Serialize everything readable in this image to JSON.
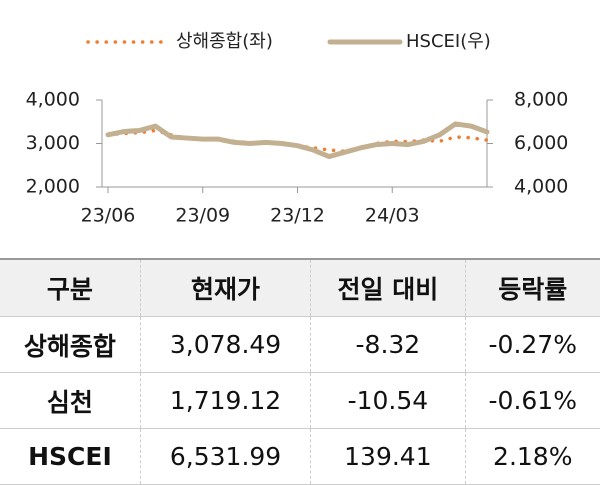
{
  "chart_data": {
    "type": "line",
    "categories": [
      "23/06",
      null,
      null,
      null,
      null,
      null,
      "23/09",
      null,
      null,
      null,
      null,
      null,
      "23/12",
      null,
      null,
      null,
      null,
      null,
      "24/03",
      null,
      null,
      null,
      null,
      null,
      null
    ],
    "series": [
      {
        "name": "상해종합(좌)",
        "color": "#ed7d31",
        "axis": "y",
        "values": [
          3200,
          3230,
          3250,
          3300,
          3200,
          3120,
          3110,
          3100,
          3050,
          3020,
          3030,
          3010,
          2950,
          2900,
          2850,
          2820,
          2900,
          3000,
          3050,
          3040,
          3080,
          3050,
          3150,
          3130,
          3078
        ]
      },
      {
        "name": "HSCEI(우)",
        "color": "#c3b091",
        "axis": "y2",
        "values": [
          6400,
          6550,
          6600,
          6800,
          6300,
          6250,
          6200,
          6200,
          6050,
          6000,
          6050,
          6000,
          5900,
          5700,
          5400,
          5600,
          5800,
          5950,
          6000,
          5950,
          6100,
          6400,
          6900,
          6800,
          6532
        ]
      }
    ],
    "ylim": [
      2000,
      4000
    ],
    "yticks": [
      {
        "value": 2000,
        "label": "2,000"
      },
      {
        "value": 3000,
        "label": "3,000"
      },
      {
        "value": 4000,
        "label": "4,000"
      }
    ],
    "y2lim": [
      4000,
      8000
    ],
    "y2ticks": [
      {
        "value": 4000,
        "label": "4,000"
      },
      {
        "value": 6000,
        "label": "6,000"
      },
      {
        "value": 8000,
        "label": "8,000"
      }
    ]
  },
  "table": {
    "header": [
      "구분",
      "현재가",
      "전일 대비",
      "등락률"
    ],
    "rows": [
      [
        "상해종합",
        "3,078.49",
        "-8.32",
        "-0.27%"
      ],
      [
        "심천",
        "1,719.12",
        "-10.54",
        "-0.61%"
      ],
      [
        "HSCEI",
        "6,531.99",
        "139.41",
        "2.18%"
      ]
    ]
  }
}
